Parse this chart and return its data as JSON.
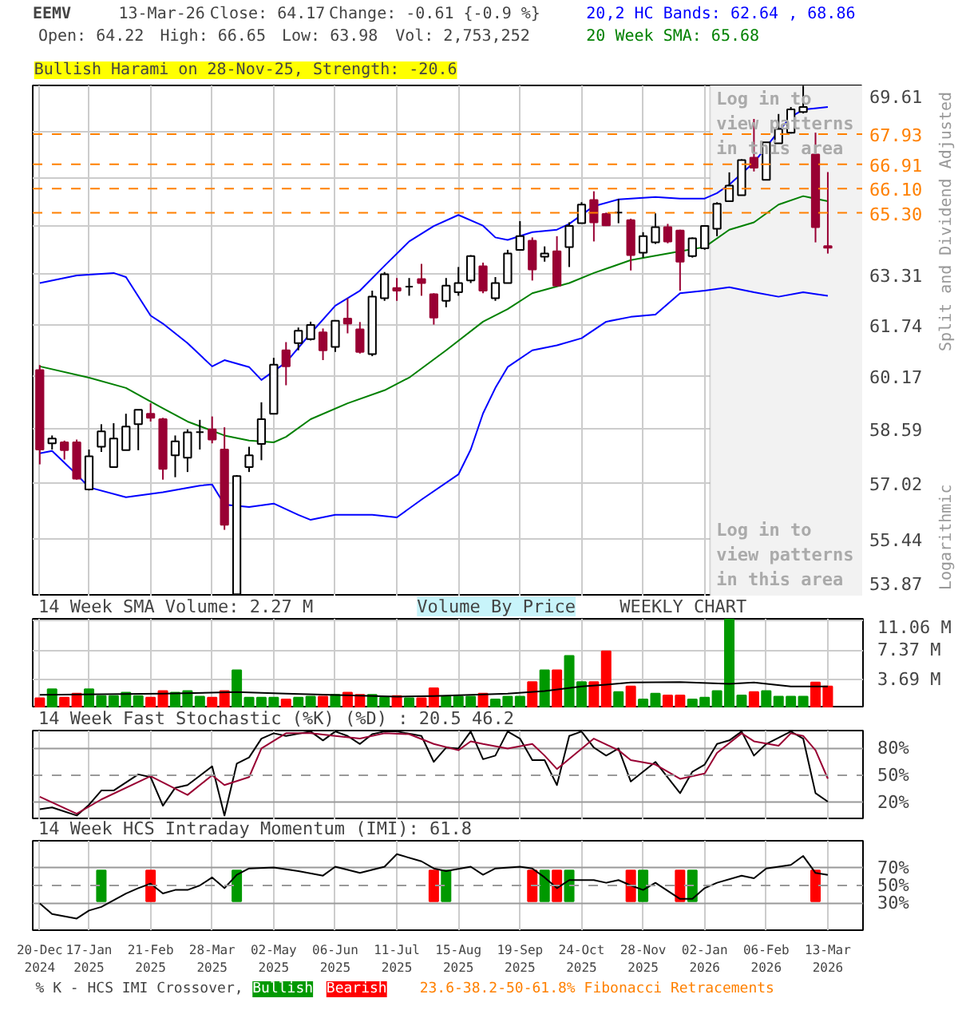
{
  "chart_data": [
    {
      "type": "candlestick",
      "title": "EEMV",
      "ylabel": "Split and Dividend Adjusted",
      "log": true,
      "grid": true,
      "legend": "top right",
      "tick_labels": "y",
      "annotations": [
        "13-Mar-26",
        "Close: 64.17",
        "Change: -0.61 {-0.9 %}",
        "Open: 64.22",
        "High: 66.65",
        "Low: 63.98",
        "Vol: 2,753,252",
        "Bullish Harami on 28-Nov-25, Strength: -20.6",
        "Logarithmic",
        "Log in to view patterns in this area"
      ],
      "xlim": [
        "2024-12-16",
        "2026-04-02"
      ],
      "xticks": [
        "2024-12-20",
        "2025-01-17",
        "2025-02-21",
        "2025-03-28",
        "2025-05-02",
        "2025-06-06",
        "2025-07-11",
        "2025-08-15",
        "2025-09-19",
        "2025-10-24",
        "2025-11-28",
        "2026-01-02",
        "2026-02-06",
        "2026-03-13"
      ],
      "ylim": [
        53.87,
        69.61
      ],
      "yticks": [
        53.87,
        55.44,
        57.02,
        58.59,
        60.17,
        61.74,
        63.31,
        {
          "value": 64.88,
          "label": null
        },
        {
          "value": 66.46,
          "label": null
        },
        {
          "value": 68.03,
          "label": null
        },
        69.61
      ],
      "x": [
        "2024-12-20",
        "2024-12-27",
        "2025-01-03",
        "2025-01-10",
        "2025-01-17",
        "2025-01-24",
        "2025-01-31",
        "2025-02-07",
        "2025-02-14",
        "2025-02-21",
        "2025-02-28",
        "2025-03-07",
        "2025-03-14",
        "2025-03-21",
        "2025-03-28",
        "2025-04-04",
        "2025-04-11",
        "2025-04-18",
        "2025-04-25",
        "2025-05-02",
        "2025-05-09",
        "2025-05-16",
        "2025-05-23",
        "2025-05-30",
        "2025-06-06",
        "2025-06-13",
        "2025-06-20",
        "2025-06-27",
        "2025-07-04",
        "2025-07-11",
        "2025-07-18",
        "2025-07-25",
        "2025-08-01",
        "2025-08-08",
        "2025-08-15",
        "2025-08-22",
        "2025-08-29",
        "2025-09-05",
        "2025-09-12",
        "2025-09-19",
        "2025-09-26",
        "2025-10-03",
        "2025-10-10",
        "2025-10-17",
        "2025-10-24",
        "2025-10-31",
        "2025-11-07",
        "2025-11-14",
        "2025-11-21",
        "2025-11-28",
        "2025-12-05",
        "2025-12-12",
        "2025-12-19",
        "2025-12-26",
        "2026-01-02",
        "2026-01-09",
        "2026-01-16",
        "2026-01-23",
        "2026-01-30",
        "2026-02-06",
        "2026-02-13",
        "2026-02-20",
        "2026-02-27",
        "2026-03-06",
        "2026-03-13"
      ],
      "ohlc": [
        [
          60.35,
          60.5,
          57.56,
          57.99
        ],
        [
          58.17,
          58.4,
          57.99,
          58.31
        ],
        [
          58.2,
          58.25,
          57.7,
          57.97
        ],
        [
          58.2,
          58.28,
          57.12,
          57.15
        ],
        [
          56.84,
          57.99,
          56.81,
          57.79
        ],
        [
          58.07,
          58.73,
          57.92,
          58.52
        ],
        [
          57.48,
          58.76,
          57.48,
          58.31
        ],
        [
          57.97,
          59.04,
          57.97,
          58.66
        ],
        [
          58.73,
          59.16,
          57.97,
          59.16
        ],
        [
          59.04,
          59.35,
          58.81,
          58.92
        ],
        [
          58.88,
          58.92,
          57.12,
          57.43
        ],
        [
          57.82,
          58.4,
          57.19,
          58.23
        ],
        [
          57.75,
          58.58,
          57.34,
          58.49
        ],
        [
          58.5,
          58.86,
          57.99,
          58.5
        ],
        [
          58.58,
          58.96,
          58.17,
          58.28
        ],
        [
          57.99,
          58.64,
          55.7,
          55.84
        ],
        [
          53.93,
          57.25,
          53.88,
          57.22
        ],
        [
          57.48,
          58.07,
          57.34,
          57.82
        ],
        [
          58.15,
          59.38,
          57.68,
          58.88
        ],
        [
          59.04,
          60.72,
          59.04,
          60.51
        ],
        [
          60.95,
          61.2,
          59.89,
          60.46
        ],
        [
          61.17,
          61.65,
          60.95,
          61.55
        ],
        [
          61.29,
          61.83,
          61.25,
          61.73
        ],
        [
          61.5,
          61.62,
          60.65,
          60.95
        ],
        [
          61.05,
          61.88,
          60.9,
          61.86
        ],
        [
          61.93,
          62.56,
          61.47,
          61.77
        ],
        [
          61.59,
          61.82,
          60.85,
          60.9
        ],
        [
          60.83,
          62.8,
          60.77,
          62.61
        ],
        [
          62.56,
          63.39,
          62.48,
          63.32
        ],
        [
          62.88,
          63.2,
          62.48,
          62.8
        ],
        [
          62.93,
          63.2,
          62.64,
          62.93
        ],
        [
          63.17,
          63.65,
          62.64,
          63.04
        ],
        [
          62.69,
          62.72,
          61.74,
          61.96
        ],
        [
          62.48,
          63.2,
          62.28,
          62.96
        ],
        [
          62.75,
          63.55,
          62.64,
          63.04
        ],
        [
          63.12,
          63.93,
          63.04,
          63.9
        ],
        [
          63.57,
          63.69,
          62.72,
          62.8
        ],
        [
          62.56,
          63.23,
          62.48,
          63.04
        ],
        [
          63.04,
          64.1,
          63.04,
          63.98
        ],
        [
          64.1,
          65.03,
          64.1,
          64.54
        ],
        [
          64.39,
          64.5,
          63.12,
          63.47
        ],
        [
          63.88,
          64.21,
          63.72,
          63.98
        ],
        [
          64.05,
          64.54,
          62.96,
          62.96
        ],
        [
          64.19,
          64.99,
          63.55,
          64.87
        ],
        [
          64.96,
          65.65,
          64.96,
          65.57
        ],
        [
          65.72,
          66.01,
          64.37,
          64.99
        ],
        [
          65.26,
          65.31,
          64.87,
          64.89
        ],
        [
          65.31,
          65.76,
          64.96,
          65.31
        ],
        [
          65.06,
          65.11,
          63.44,
          63.93
        ],
        [
          64.01,
          64.67,
          63.85,
          64.54
        ],
        [
          64.34,
          65.28,
          64.29,
          64.83
        ],
        [
          64.83,
          64.94,
          64.31,
          64.37
        ],
        [
          64.72,
          64.75,
          62.8,
          63.72
        ],
        [
          63.9,
          64.5,
          63.85,
          64.47
        ],
        [
          64.15,
          64.87,
          64.1,
          64.87
        ],
        [
          64.78,
          65.65,
          64.54,
          65.6
        ],
        [
          65.68,
          66.64,
          65.68,
          66.2
        ],
        [
          65.88,
          67.08,
          65.88,
          67.05
        ],
        [
          67.13,
          68.45,
          66.67,
          66.8
        ],
        [
          66.39,
          67.65,
          66.39,
          67.65
        ],
        [
          67.62,
          68.62,
          67.62,
          68.11
        ],
        [
          67.98,
          68.86,
          67.95,
          68.78
        ],
        [
          68.69,
          69.6,
          68.64,
          68.86
        ],
        [
          67.24,
          67.98,
          64.34,
          64.83
        ],
        [
          64.22,
          66.65,
          63.98,
          64.17
        ]
      ],
      "series": [
        {
          "name": "20,2 HC Bands: 62.64 , 68.86",
          "type": "line",
          "color": "#0000ff",
          "x": [
            "2024-12-20",
            "2025-01-10",
            "2025-01-31",
            "2025-02-07",
            "2025-02-21",
            "2025-02-28",
            "2025-03-14",
            "2025-03-28",
            "2025-04-04",
            "2025-04-18",
            "2025-04-25",
            "2025-05-09",
            "2025-05-23",
            "2025-06-06",
            "2025-06-20",
            "2025-07-04",
            "2025-07-18",
            "2025-08-01",
            "2025-08-15",
            "2025-08-29",
            "2025-09-05",
            "2025-09-12",
            "2025-09-26",
            "2025-10-10",
            "2025-10-17",
            "2025-10-31",
            "2025-11-14",
            "2025-12-05",
            "2025-12-19",
            "2026-01-02",
            "2026-01-09",
            "2026-01-16",
            "2026-01-30",
            "2026-02-13",
            "2026-02-20",
            "2026-02-27",
            "2026-03-13"
          ],
          "values": [
            63.04,
            63.28,
            63.36,
            63.23,
            62.02,
            61.77,
            61.17,
            60.46,
            60.65,
            60.44,
            60.05,
            60.58,
            61.47,
            62.33,
            62.8,
            63.59,
            64.37,
            64.87,
            65.23,
            64.88,
            64.5,
            64.42,
            64.67,
            64.75,
            64.94,
            65.52,
            65.74,
            65.82,
            65.77,
            65.77,
            65.95,
            66.23,
            66.97,
            68.03,
            68.52,
            68.77,
            68.86
          ]
        },
        {
          "type": "line",
          "color": "#0000ff",
          "x": [
            "2024-12-20",
            "2024-12-27",
            "2025-01-10",
            "2025-01-17",
            "2025-02-07",
            "2025-02-28",
            "2025-03-21",
            "2025-03-28",
            "2025-04-04",
            "2025-04-18",
            "2025-05-02",
            "2025-05-16",
            "2025-05-23",
            "2025-06-06",
            "2025-06-27",
            "2025-07-11",
            "2025-07-25",
            "2025-08-15",
            "2025-08-22",
            "2025-08-29",
            "2025-09-05",
            "2025-09-12",
            "2025-09-26",
            "2025-10-10",
            "2025-10-24",
            "2025-11-07",
            "2025-11-21",
            "2025-12-05",
            "2025-12-19",
            "2026-01-02",
            "2026-01-16",
            "2026-01-30",
            "2026-02-13",
            "2026-02-27",
            "2026-03-13"
          ],
          "values": [
            57.88,
            57.95,
            57.27,
            56.9,
            56.62,
            56.76,
            56.95,
            56.98,
            56.41,
            56.34,
            56.44,
            56.12,
            55.98,
            56.12,
            56.12,
            56.05,
            56.55,
            57.27,
            57.99,
            59.05,
            59.81,
            60.44,
            60.95,
            61.1,
            61.32,
            61.83,
            61.98,
            62.05,
            62.72,
            62.8,
            62.91,
            62.75,
            62.61,
            62.75,
            62.64
          ]
        },
        {
          "name": "20 Week SMA: 65.68",
          "type": "line",
          "color": "#008000",
          "x": [
            "2024-12-20",
            "2025-01-17",
            "2025-02-07",
            "2025-02-28",
            "2025-03-14",
            "2025-04-04",
            "2025-04-18",
            "2025-05-02",
            "2025-05-09",
            "2025-05-23",
            "2025-06-13",
            "2025-07-04",
            "2025-07-18",
            "2025-08-08",
            "2025-08-29",
            "2025-09-12",
            "2025-09-26",
            "2025-10-17",
            "2025-10-31",
            "2025-11-21",
            "2025-12-19",
            "2026-01-02",
            "2026-01-16",
            "2026-01-30",
            "2026-02-13",
            "2026-02-27",
            "2026-03-13"
          ],
          "values": [
            60.46,
            60.12,
            59.81,
            59.2,
            58.81,
            58.4,
            58.25,
            58.2,
            58.36,
            58.88,
            59.35,
            59.74,
            60.12,
            60.95,
            61.83,
            62.22,
            62.72,
            63.04,
            63.36,
            63.77,
            64.05,
            64.19,
            64.75,
            64.99,
            65.57,
            65.85,
            65.68
          ]
        }
      ],
      "ref_lines": [
        {
          "axis": "y",
          "value": 65.3,
          "label": "65.30",
          "color": "#ff8000",
          "line_style": "dashed"
        },
        {
          "axis": "y",
          "value": 66.1,
          "label": "66.10",
          "color": "#ff8000",
          "line_style": "dashed"
        },
        {
          "axis": "y",
          "value": 66.91,
          "label": "66.91",
          "color": "#ff8000",
          "line_style": "dashed"
        },
        {
          "axis": "y",
          "value": 67.93,
          "label": "67.93",
          "color": "#ff8000",
          "line_style": "dashed"
        }
      ],
      "bands": [
        {
          "axis": "x",
          "from": "2026-01-05",
          "to": "2026-04-02",
          "label": "Log in to view patterns in this area",
          "color": "#f2f2f2"
        }
      ]
    },
    {
      "type": "bar",
      "title": "14 Week SMA Volume: 2.27 M",
      "grid": true,
      "tick_labels": "y",
      "annotations": [
        "Volume By Price",
        "WEEKLY CHART"
      ],
      "xlim": [
        "2024-12-16",
        "2026-04-02"
      ],
      "xticks": [
        "2024-12-20",
        "2025-01-17",
        "2025-02-21",
        "2025-03-28",
        "2025-05-02",
        "2025-06-06",
        "2025-07-11",
        "2025-08-15",
        "2025-09-19",
        "2025-10-24",
        "2025-11-28",
        "2026-01-02",
        "2026-02-06",
        "2026-03-13"
      ],
      "ylim": [
        0,
        11.35
      ],
      "yticks": [
        {
          "value": 3.69,
          "label": "3.69 M"
        },
        {
          "value": 7.37,
          "label": "7.37 M"
        },
        {
          "value": 11.06,
          "label": "11.06 M"
        }
      ],
      "x": [
        "2024-12-20",
        "2024-12-27",
        "2025-01-03",
        "2025-01-10",
        "2025-01-17",
        "2025-01-24",
        "2025-01-31",
        "2025-02-07",
        "2025-02-14",
        "2025-02-21",
        "2025-02-28",
        "2025-03-07",
        "2025-03-14",
        "2025-03-21",
        "2025-03-28",
        "2025-04-04",
        "2025-04-11",
        "2025-04-18",
        "2025-04-25",
        "2025-05-02",
        "2025-05-09",
        "2025-05-16",
        "2025-05-23",
        "2025-05-30",
        "2025-06-06",
        "2025-06-13",
        "2025-06-20",
        "2025-06-27",
        "2025-07-04",
        "2025-07-11",
        "2025-07-18",
        "2025-07-25",
        "2025-08-01",
        "2025-08-08",
        "2025-08-15",
        "2025-08-22",
        "2025-08-29",
        "2025-09-05",
        "2025-09-12",
        "2025-09-19",
        "2025-09-26",
        "2025-10-03",
        "2025-10-10",
        "2025-10-17",
        "2025-10-24",
        "2025-10-31",
        "2025-11-07",
        "2025-11-14",
        "2025-11-21",
        "2025-11-28",
        "2025-12-05",
        "2025-12-12",
        "2025-12-19",
        "2025-12-26",
        "2026-01-02",
        "2026-01-09",
        "2026-01-16",
        "2026-01-23",
        "2026-01-30",
        "2026-02-06",
        "2026-02-13",
        "2026-02-20",
        "2026-02-27",
        "2026-03-06",
        "2026-03-13"
      ],
      "series": [
        {
          "type": "bar",
          "values": [
            1.27,
            2.4,
            1.35,
            1.84,
            2.4,
            1.55,
            1.55,
            1.97,
            1.55,
            1.35,
            2.19,
            1.97,
            2.19,
            1.47,
            1.35,
            2.19,
            4.81,
            1.35,
            1.35,
            1.35,
            1.12,
            1.35,
            1.47,
            1.47,
            1.7,
            1.97,
            1.7,
            1.7,
            1.35,
            1.55,
            1.27,
            1.27,
            2.54,
            1.47,
            1.47,
            1.47,
            1.84,
            1.12,
            1.47,
            1.47,
            3.32,
            4.81,
            4.81,
            6.65,
            3.32,
            3.32,
            7.22,
            2.05,
            2.76,
            1.12,
            1.84,
            1.62,
            1.62,
            1.12,
            1.35,
            2.19,
            11.3,
            1.62,
            2.05,
            2.19,
            1.47,
            1.47,
            1.47,
            3.26,
            2.75
          ],
          "colors": [
            "#ff0000",
            "#009900",
            "#ff0000",
            "#ff0000",
            "#009900",
            "#009900",
            "#009900",
            "#009900",
            "#009900",
            "#ff0000",
            "#ff0000",
            "#009900",
            "#009900",
            "#009900",
            "#ff0000",
            "#ff0000",
            "#009900",
            "#009900",
            "#009900",
            "#009900",
            "#ff0000",
            "#009900",
            "#009900",
            "#ff0000",
            "#009900",
            "#ff0000",
            "#ff0000",
            "#009900",
            "#009900",
            "#ff0000",
            "#009900",
            "#ff0000",
            "#ff0000",
            "#009900",
            "#009900",
            "#009900",
            "#ff0000",
            "#009900",
            "#009900",
            "#009900",
            "#ff0000",
            "#009900",
            "#ff0000",
            "#009900",
            "#009900",
            "#ff0000",
            "#ff0000",
            "#009900",
            "#ff0000",
            "#009900",
            "#009900",
            "#ff0000",
            "#ff0000",
            "#009900",
            "#009900",
            "#009900",
            "#009900",
            "#009900",
            "#ff0000",
            "#009900",
            "#009900",
            "#009900",
            "#009900",
            "#ff0000",
            "#ff0000"
          ]
        },
        {
          "type": "line",
          "color": "#000000",
          "x": [
            "2024-12-20",
            "2025-02-28",
            "2025-04-11",
            "2025-05-09",
            "2025-07-11",
            "2025-08-01",
            "2025-09-12",
            "2025-10-03",
            "2025-10-24",
            "2025-11-07",
            "2025-11-21",
            "2025-12-19",
            "2026-01-16",
            "2026-01-30",
            "2026-02-20",
            "2026-03-13"
          ],
          "values": [
            1.7,
            1.84,
            2.05,
            1.84,
            1.47,
            1.55,
            1.84,
            2.19,
            2.76,
            3.0,
            3.26,
            3.32,
            3.1,
            3.26,
            2.76,
            2.76
          ]
        }
      ]
    },
    {
      "type": "line",
      "title": "14 Week Fast Stochastic (%K) (%D) : 20.5 46.2",
      "grid": "x",
      "tick_labels": "y",
      "xlim": [
        "2024-12-16",
        "2026-04-02"
      ],
      "xticks": [
        "2024-12-20",
        "2025-01-17",
        "2025-02-21",
        "2025-03-28",
        "2025-05-02",
        "2025-06-06",
        "2025-07-11",
        "2025-08-15",
        "2025-09-19",
        "2025-10-24",
        "2025-11-28",
        "2026-01-02",
        "2026-02-06",
        "2026-03-13"
      ],
      "ylim": [
        0,
        100
      ],
      "yticks": [
        {
          "value": 20,
          "label": "20%"
        },
        {
          "value": 50,
          "label": "50%"
        },
        {
          "value": 80,
          "label": "80%"
        }
      ],
      "ref_lines": [
        {
          "axis": "y",
          "value": 20,
          "color": "#999999"
        },
        {
          "axis": "y",
          "value": 50,
          "color": "#999999",
          "line_style": "dashed"
        },
        {
          "axis": "y",
          "value": 80,
          "color": "#999999"
        }
      ],
      "series": [
        {
          "color": "#000000",
          "x": [
            "2024-12-20",
            "2024-12-27",
            "2025-01-10",
            "2025-01-17",
            "2025-01-24",
            "2025-01-31",
            "2025-02-14",
            "2025-02-21",
            "2025-02-28",
            "2025-03-07",
            "2025-03-14",
            "2025-03-28",
            "2025-04-04",
            "2025-04-11",
            "2025-04-18",
            "2025-04-25",
            "2025-05-02",
            "2025-05-09",
            "2025-05-23",
            "2025-05-30",
            "2025-06-06",
            "2025-06-13",
            "2025-06-20",
            "2025-06-27",
            "2025-07-04",
            "2025-07-11",
            "2025-07-25",
            "2025-08-01",
            "2025-08-08",
            "2025-08-15",
            "2025-08-22",
            "2025-08-29",
            "2025-09-05",
            "2025-09-12",
            "2025-09-19",
            "2025-09-26",
            "2025-10-03",
            "2025-10-10",
            "2025-10-17",
            "2025-10-24",
            "2025-10-31",
            "2025-11-07",
            "2025-11-14",
            "2025-11-21",
            "2025-12-05",
            "2025-12-19",
            "2025-12-26",
            "2026-01-02",
            "2026-01-09",
            "2026-01-16",
            "2026-01-23",
            "2026-01-30",
            "2026-02-06",
            "2026-02-20",
            "2026-02-27",
            "2026-03-06",
            "2026-03-13"
          ],
          "values": [
            12,
            14,
            5,
            17,
            33,
            33,
            51,
            48,
            16,
            36,
            39,
            60,
            5,
            63,
            70,
            91,
            97,
            94,
            99,
            89,
            99,
            94,
            85,
            96,
            99,
            99,
            94,
            65,
            81,
            80,
            99,
            68,
            72,
            99,
            91,
            67,
            67,
            39,
            94,
            99,
            81,
            72,
            80,
            43,
            65,
            30,
            54,
            62,
            85,
            89,
            99,
            72,
            85,
            99,
            91,
            30,
            20.5
          ]
        },
        {
          "color": "#990033",
          "x": [
            "2024-12-20",
            "2025-01-10",
            "2025-01-24",
            "2025-02-21",
            "2025-03-14",
            "2025-03-28",
            "2025-04-04",
            "2025-04-18",
            "2025-04-25",
            "2025-05-09",
            "2025-05-23",
            "2025-06-06",
            "2025-06-20",
            "2025-07-04",
            "2025-07-18",
            "2025-08-01",
            "2025-08-15",
            "2025-08-22",
            "2025-08-29",
            "2025-09-12",
            "2025-09-26",
            "2025-10-03",
            "2025-10-10",
            "2025-10-31",
            "2025-11-14",
            "2025-11-21",
            "2025-12-05",
            "2025-12-19",
            "2026-01-02",
            "2026-01-09",
            "2026-01-23",
            "2026-01-30",
            "2026-02-13",
            "2026-02-20",
            "2026-02-27",
            "2026-03-06",
            "2026-03-13"
          ],
          "values": [
            26,
            7,
            23,
            49,
            28,
            50,
            39,
            48,
            80,
            97,
            97,
            94,
            91,
            97,
            96,
            85,
            78,
            88,
            85,
            80,
            85,
            72,
            57,
            91,
            78,
            67,
            62,
            46,
            52,
            75,
            97,
            88,
            83,
            97,
            94,
            78,
            46.2
          ]
        }
      ]
    },
    {
      "type": "line",
      "title": "14 Week HCS Intraday Momentum (IMI): 61.8",
      "grid": "x",
      "legend": "bottom",
      "legend_title": "% K - HCS IMI Crossover,",
      "annotations": [
        "23.6-38.2-50-61.8% Fibonacci Retracements"
      ],
      "xlim": [
        "2024-12-16",
        "2026-04-02"
      ],
      "xticks": [
        {
          "value": "2024-12-20",
          "label": "20-Dec 2024"
        },
        {
          "value": "2025-01-17",
          "label": "17-Jan 2025"
        },
        {
          "value": "2025-02-21",
          "label": "21-Feb 2025"
        },
        {
          "value": "2025-03-28",
          "label": "28-Mar 2025"
        },
        {
          "value": "2025-05-02",
          "label": "02-May 2025"
        },
        {
          "value": "2025-06-06",
          "label": "06-Jun 2025"
        },
        {
          "value": "2025-07-11",
          "label": "11-Jul 2025"
        },
        {
          "value": "2025-08-15",
          "label": "15-Aug 2025"
        },
        {
          "value": "2025-09-19",
          "label": "19-Sep 2025"
        },
        {
          "value": "2025-10-24",
          "label": "24-Oct 2025"
        },
        {
          "value": "2025-11-28",
          "label": "28-Nov 2025"
        },
        {
          "value": "2026-01-02",
          "label": "02-Jan 2026"
        },
        {
          "value": "2026-02-06",
          "label": "06-Feb 2026"
        },
        {
          "value": "2026-03-13",
          "label": "13-Mar 2026"
        }
      ],
      "ylim": [
        0,
        100
      ],
      "yticks": [
        {
          "value": 30,
          "label": "30%"
        },
        {
          "value": 50,
          "label": "50%"
        },
        {
          "value": 70,
          "label": "70%"
        }
      ],
      "ref_lines": [
        {
          "axis": "y",
          "value": 30,
          "color": "#999999"
        },
        {
          "axis": "y",
          "value": 50,
          "color": "#999999",
          "line_style": "dashed"
        },
        {
          "axis": "y",
          "value": 70,
          "color": "#999999"
        }
      ],
      "series": [
        {
          "name": "Bullish",
          "type": "bar",
          "color": "#009900",
          "x": [
            "2025-01-24",
            "2025-04-11",
            "2025-08-08",
            "2025-10-03",
            "2025-10-17",
            "2025-11-28",
            "2025-12-26"
          ],
          "values": [
            34.3,
            34.3,
            34.3,
            34.3,
            34.3,
            34.3,
            34.3
          ],
          "base": [
            32.4,
            32.4,
            32.4,
            32.4,
            32.4,
            32.4,
            32.4
          ]
        },
        {
          "name": "Bearish",
          "type": "bar",
          "color": "#ff0000",
          "x": [
            "2025-02-21",
            "2025-08-01",
            "2025-09-26",
            "2025-10-10",
            "2025-11-21",
            "2025-12-19",
            "2026-03-06"
          ],
          "values": [
            34.3,
            34.3,
            34.3,
            34.3,
            34.3,
            34.3,
            34.3
          ],
          "base": [
            32.4,
            32.4,
            32.4,
            32.4,
            32.4,
            32.4,
            32.4
          ]
        },
        {
          "type": "line",
          "color": "#000000",
          "x": [
            "2024-12-20",
            "2024-12-27",
            "2025-01-10",
            "2025-01-17",
            "2025-01-24",
            "2025-02-07",
            "2025-02-14",
            "2025-02-21",
            "2025-02-28",
            "2025-03-07",
            "2025-03-14",
            "2025-03-21",
            "2025-03-28",
            "2025-04-04",
            "2025-04-11",
            "2025-04-18",
            "2025-05-02",
            "2025-05-16",
            "2025-05-30",
            "2025-06-06",
            "2025-06-20",
            "2025-07-04",
            "2025-07-11",
            "2025-07-25",
            "2025-08-01",
            "2025-08-08",
            "2025-08-22",
            "2025-08-29",
            "2025-09-05",
            "2025-09-19",
            "2025-09-26",
            "2025-10-03",
            "2025-10-10",
            "2025-10-17",
            "2025-10-31",
            "2025-11-07",
            "2025-11-14",
            "2025-11-21",
            "2025-11-28",
            "2025-12-05",
            "2025-12-19",
            "2025-12-26",
            "2026-01-02",
            "2026-01-09",
            "2026-01-23",
            "2026-01-30",
            "2026-02-06",
            "2026-02-20",
            "2026-02-27",
            "2026-03-06",
            "2026-03-13"
          ],
          "values": [
            30,
            18,
            13,
            22,
            26,
            41,
            47,
            52,
            41,
            45,
            45,
            50,
            59,
            47,
            62,
            69,
            70,
            66,
            61,
            71,
            64,
            71,
            85,
            77,
            69,
            66,
            71,
            62,
            69,
            71,
            69,
            59,
            47,
            56,
            56,
            53,
            56,
            50,
            45,
            53,
            35,
            35,
            47,
            53,
            61,
            58,
            69,
            73,
            83,
            64,
            61.8
          ]
        }
      ]
    }
  ]
}
